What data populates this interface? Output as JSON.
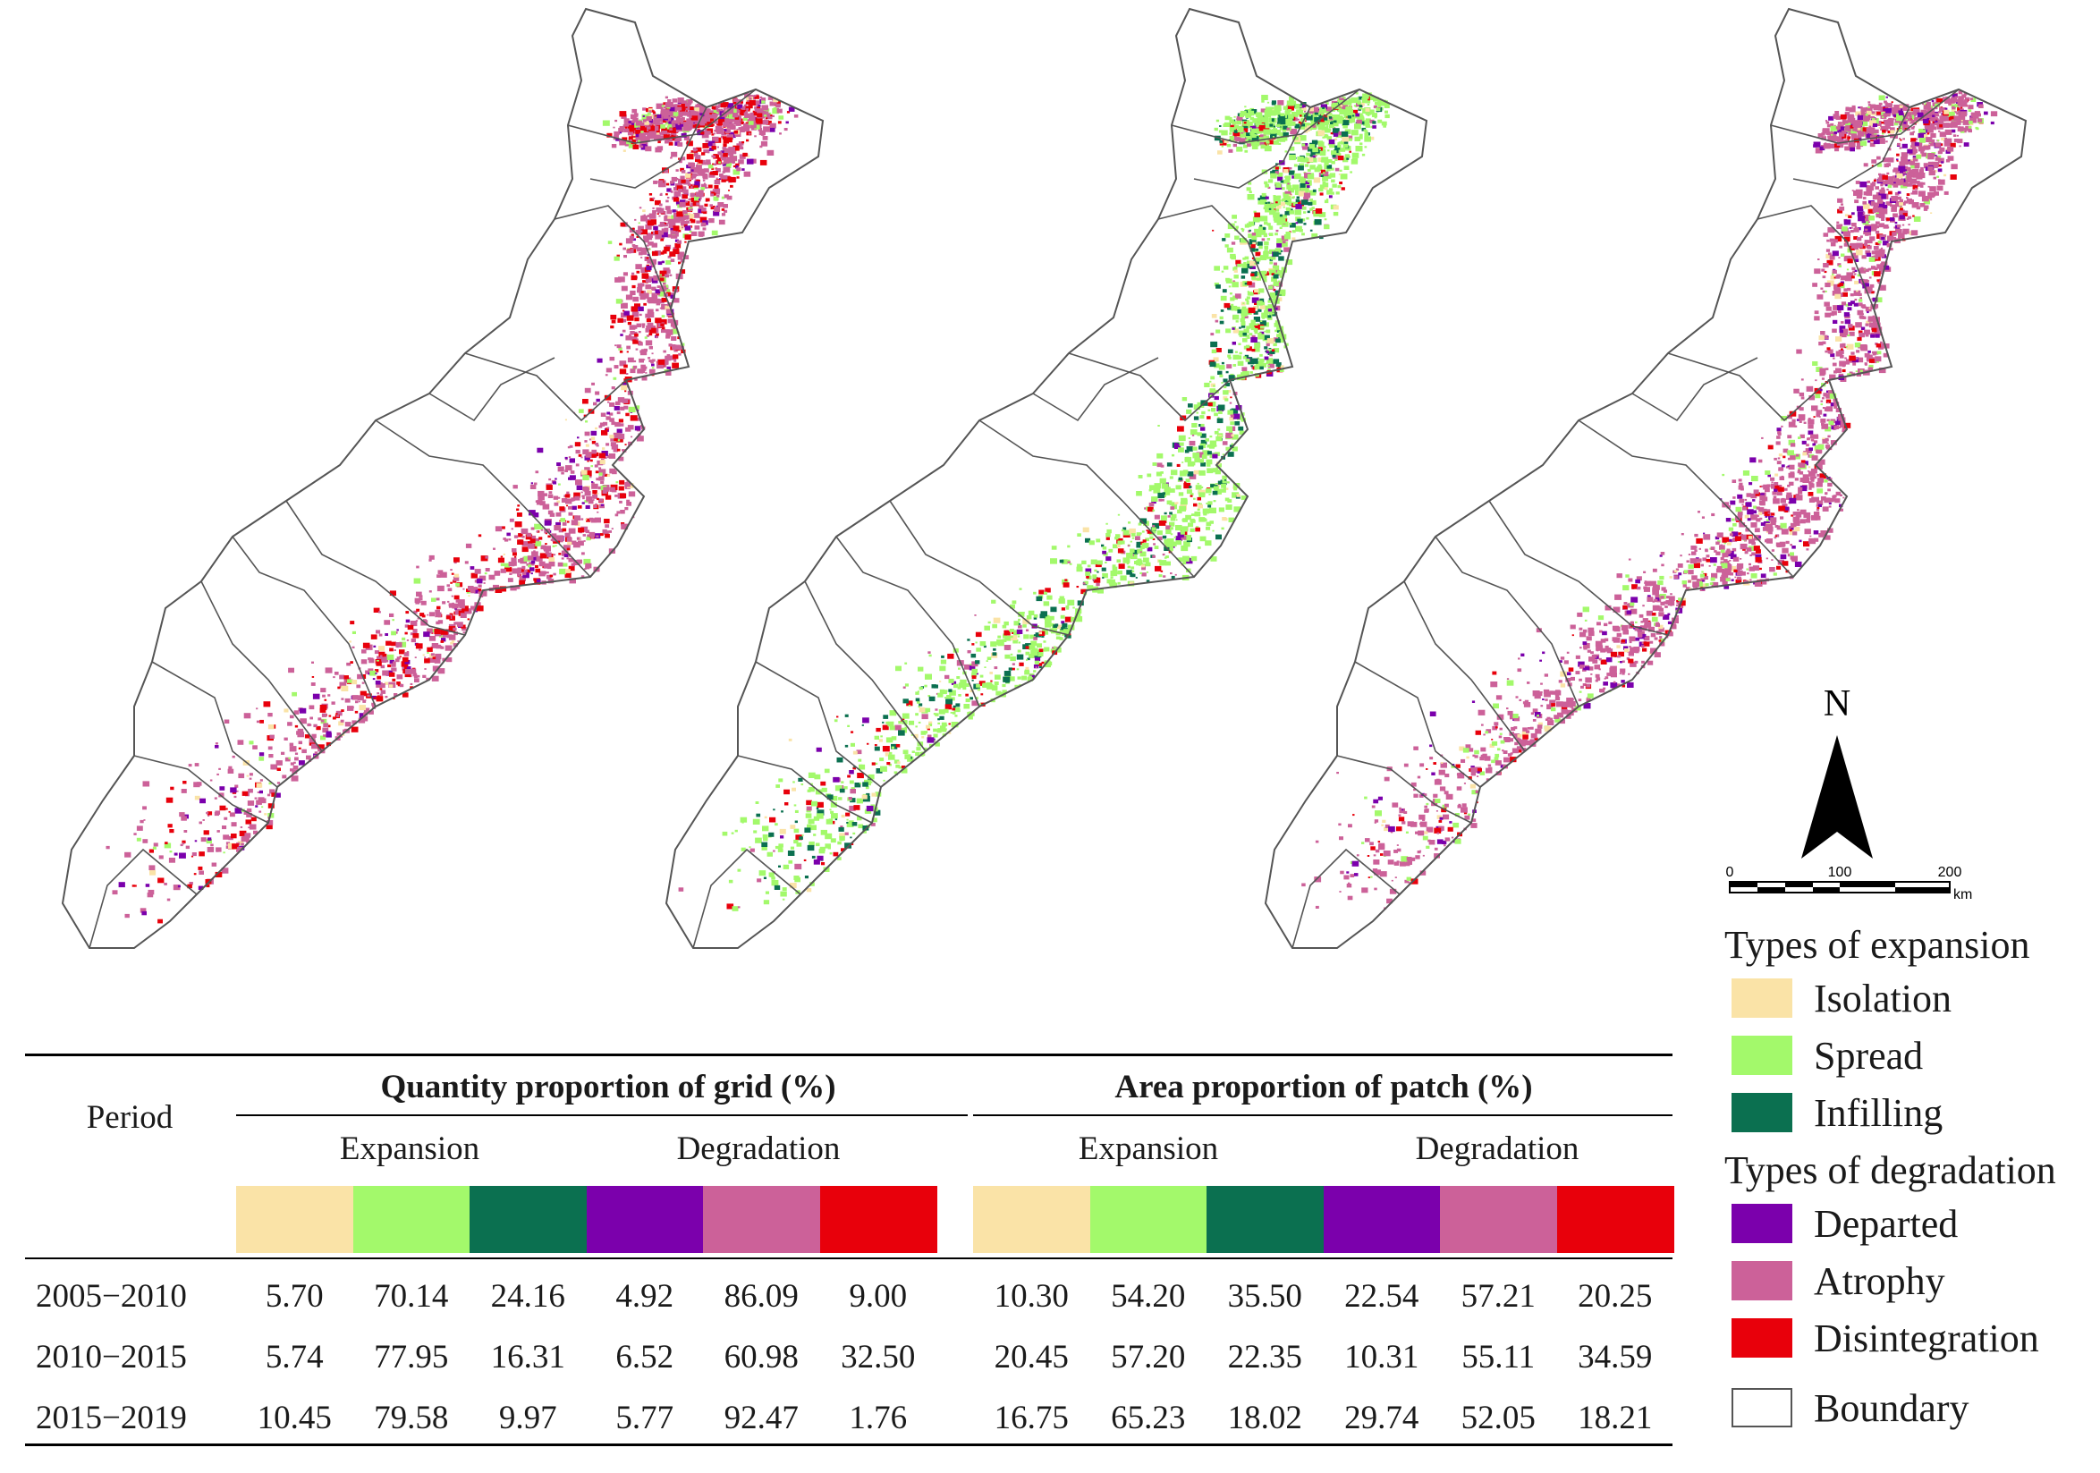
{
  "colors": {
    "isolation": "#FAE3A7",
    "spread": "#A3F96B",
    "infilling": "#0B7050",
    "departed": "#7B00AC",
    "atrophy": "#CC6199",
    "disintegration": "#E8000B",
    "boundary": "#555555"
  },
  "maps": [
    {
      "name": "map-2005-2010",
      "dominant": [
        "atrophy",
        "disintegration",
        "departed"
      ]
    },
    {
      "name": "map-2010-2015",
      "dominant": [
        "spread",
        "infilling",
        "disintegration"
      ]
    },
    {
      "name": "map-2015-2019",
      "dominant": [
        "atrophy",
        "departed",
        "spread"
      ]
    }
  ],
  "north_arrow": {
    "label": "N"
  },
  "scale_bar": {
    "ticks": [
      "0",
      "100",
      "200"
    ],
    "unit": "km"
  },
  "legend": {
    "expansion_title": "Types of expansion",
    "expansion": [
      {
        "label": "Isolation",
        "color": "#FAE3A7"
      },
      {
        "label": "Spread",
        "color": "#A3F96B"
      },
      {
        "label": "Infilling",
        "color": "#0B7050"
      }
    ],
    "degradation_title": "Types of degradation",
    "degradation": [
      {
        "label": "Departed",
        "color": "#7B00AC"
      },
      {
        "label": "Atrophy",
        "color": "#CC6199"
      },
      {
        "label": "Disintegration",
        "color": "#E8000B"
      }
    ],
    "boundary": {
      "label": "Boundary"
    }
  },
  "table": {
    "period_header": "Period",
    "group1_title": "Quantity proportion of grid (%)",
    "group2_title": "Area proportion of patch (%)",
    "expansion": "Expansion",
    "degradation": "Degradation",
    "rows": [
      {
        "period": "2005−2010",
        "quantity": [
          "5.70",
          "70.14",
          "24.16",
          "4.92",
          "86.09",
          "9.00"
        ],
        "area": [
          "10.30",
          "54.20",
          "35.50",
          "22.54",
          "57.21",
          "20.25"
        ]
      },
      {
        "period": "2010−2015",
        "quantity": [
          "5.74",
          "77.95",
          "16.31",
          "6.52",
          "60.98",
          "32.50"
        ],
        "area": [
          "20.45",
          "57.20",
          "22.35",
          "10.31",
          "55.11",
          "34.59"
        ]
      },
      {
        "period": "2015−2019",
        "quantity": [
          "10.45",
          "79.58",
          "9.97",
          "5.77",
          "92.47",
          "1.76"
        ],
        "area": [
          "16.75",
          "65.23",
          "18.02",
          "29.74",
          "52.05",
          "18.21"
        ]
      }
    ]
  }
}
